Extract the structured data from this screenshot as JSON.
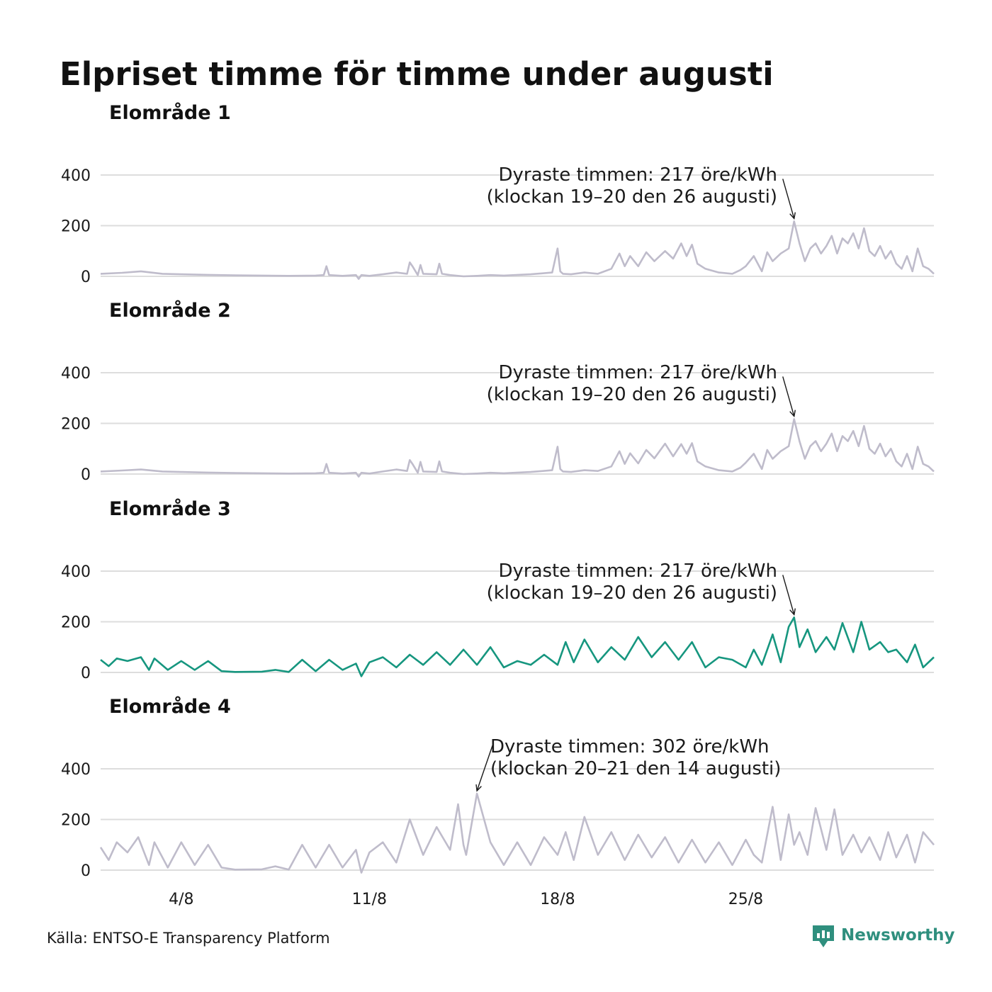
{
  "title": "Elpriset timme för timme under augusti",
  "source": "Källa: ENTSO-E Transparency Platform",
  "brand": {
    "name": "Newsworthy",
    "icon": "newsworthy-logo-icon",
    "color": "#2f8f7e"
  },
  "colors": {
    "highlight": "#16967f",
    "muted": "#bfbccb",
    "grid": "#dddddd"
  },
  "chart_data": [
    {
      "type": "line",
      "title": "Elområde 1",
      "highlight": false,
      "yticks": [
        0,
        200,
        400
      ],
      "ylim": [
        -30,
        430
      ],
      "xlim": [
        1,
        32
      ],
      "xticks": [
        {
          "value": 4,
          "label": "4/8"
        },
        {
          "value": 11,
          "label": "11/8"
        },
        {
          "value": 18,
          "label": "18/8"
        },
        {
          "value": 25,
          "label": "25/8"
        }
      ],
      "x": [
        1.0,
        1.8,
        2.5,
        3.3,
        4.0,
        5.0,
        6.0,
        7.0,
        8.0,
        9.0,
        9.3,
        9.4,
        9.5,
        10.0,
        10.5,
        10.6,
        10.7,
        11.0,
        11.5,
        12.0,
        12.4,
        12.5,
        12.6,
        12.8,
        12.9,
        13.0,
        13.5,
        13.6,
        13.7,
        14.0,
        14.5,
        15.0,
        15.5,
        16.0,
        17.0,
        17.8,
        18.0,
        18.1,
        18.2,
        18.5,
        19.0,
        19.5,
        20.0,
        20.3,
        20.5,
        20.7,
        21.0,
        21.3,
        21.6,
        22.0,
        22.3,
        22.6,
        22.8,
        23.0,
        23.2,
        23.5,
        24.0,
        24.5,
        24.8,
        25.0,
        25.3,
        25.6,
        25.8,
        26.0,
        26.3,
        26.6,
        26.8,
        27.0,
        27.2,
        27.4,
        27.6,
        27.8,
        28.0,
        28.2,
        28.4,
        28.6,
        28.8,
        29.0,
        29.2,
        29.4,
        29.6,
        29.8,
        30.0,
        30.2,
        30.4,
        30.6,
        30.8,
        31.0,
        31.2,
        31.4,
        31.6,
        31.8,
        32.0
      ],
      "y": [
        10,
        14,
        20,
        10,
        8,
        6,
        4,
        3,
        2,
        3,
        5,
        40,
        5,
        2,
        5,
        -10,
        5,
        2,
        8,
        15,
        10,
        55,
        40,
        5,
        45,
        10,
        8,
        50,
        10,
        5,
        0,
        2,
        5,
        3,
        8,
        15,
        110,
        20,
        10,
        8,
        15,
        10,
        30,
        90,
        40,
        80,
        40,
        95,
        60,
        100,
        70,
        130,
        80,
        125,
        50,
        30,
        15,
        10,
        25,
        40,
        80,
        20,
        95,
        60,
        90,
        110,
        217,
        130,
        60,
        110,
        130,
        90,
        120,
        160,
        90,
        150,
        130,
        170,
        110,
        190,
        100,
        80,
        120,
        70,
        100,
        50,
        30,
        80,
        20,
        110,
        40,
        30,
        10
      ],
      "annotation": {
        "text_line1": "Dyraste timmen: 217 öre/kWh",
        "text_line2": "(klockan 19–20 den 26 augusti)",
        "x": 26.8,
        "y": 217
      }
    },
    {
      "type": "line",
      "title": "Elområde 2",
      "highlight": false,
      "yticks": [
        0,
        200,
        400
      ],
      "ylim": [
        -30,
        430
      ],
      "xlim": [
        1,
        32
      ],
      "xticks": [
        {
          "value": 4,
          "label": "4/8"
        },
        {
          "value": 11,
          "label": "11/8"
        },
        {
          "value": 18,
          "label": "18/8"
        },
        {
          "value": 25,
          "label": "25/8"
        }
      ],
      "x": [
        1.0,
        1.8,
        2.5,
        3.3,
        4.0,
        5.0,
        6.0,
        7.0,
        8.0,
        9.0,
        9.3,
        9.4,
        9.5,
        10.0,
        10.5,
        10.6,
        10.7,
        11.0,
        11.5,
        12.0,
        12.4,
        12.5,
        12.6,
        12.8,
        12.9,
        13.0,
        13.5,
        13.6,
        13.7,
        14.0,
        14.5,
        15.0,
        15.5,
        16.0,
        17.0,
        17.8,
        18.0,
        18.1,
        18.2,
        18.5,
        19.0,
        19.5,
        20.0,
        20.3,
        20.5,
        20.7,
        21.0,
        21.3,
        21.6,
        22.0,
        22.3,
        22.6,
        22.8,
        23.0,
        23.2,
        23.5,
        24.0,
        24.5,
        24.8,
        25.0,
        25.3,
        25.6,
        25.8,
        26.0,
        26.3,
        26.6,
        26.8,
        27.0,
        27.2,
        27.4,
        27.6,
        27.8,
        28.0,
        28.2,
        28.4,
        28.6,
        28.8,
        29.0,
        29.2,
        29.4,
        29.6,
        29.8,
        30.0,
        30.2,
        30.4,
        30.6,
        30.8,
        31.0,
        31.2,
        31.4,
        31.6,
        31.8,
        32.0
      ],
      "y": [
        10,
        14,
        18,
        10,
        8,
        6,
        4,
        3,
        2,
        3,
        5,
        40,
        5,
        2,
        5,
        -10,
        5,
        2,
        10,
        18,
        12,
        55,
        40,
        5,
        48,
        10,
        8,
        50,
        10,
        5,
        0,
        2,
        5,
        3,
        8,
        15,
        108,
        20,
        10,
        8,
        15,
        12,
        30,
        90,
        40,
        82,
        42,
        95,
        62,
        120,
        70,
        118,
        80,
        122,
        50,
        30,
        15,
        10,
        25,
        45,
        80,
        20,
        95,
        60,
        90,
        110,
        217,
        130,
        60,
        110,
        130,
        90,
        120,
        160,
        90,
        150,
        130,
        170,
        110,
        190,
        100,
        80,
        120,
        70,
        100,
        50,
        30,
        80,
        20,
        108,
        40,
        30,
        10
      ],
      "annotation": {
        "text_line1": "Dyraste timmen: 217 öre/kWh",
        "text_line2": "(klockan 19–20 den 26 augusti)",
        "x": 26.8,
        "y": 217
      }
    },
    {
      "type": "line",
      "title": "Elområde 3",
      "highlight": true,
      "yticks": [
        0,
        200,
        400
      ],
      "ylim": [
        -30,
        430
      ],
      "xlim": [
        1,
        32
      ],
      "xticks": [
        {
          "value": 4,
          "label": "4/8"
        },
        {
          "value": 11,
          "label": "11/8"
        },
        {
          "value": 18,
          "label": "18/8"
        },
        {
          "value": 25,
          "label": "25/8"
        }
      ],
      "x": [
        1.0,
        1.3,
        1.6,
        2.0,
        2.5,
        2.8,
        3.0,
        3.5,
        4.0,
        4.5,
        5.0,
        5.5,
        6.0,
        7.0,
        7.5,
        8.0,
        8.5,
        9.0,
        9.5,
        10.0,
        10.5,
        10.7,
        11.0,
        11.5,
        12.0,
        12.5,
        13.0,
        13.5,
        14.0,
        14.5,
        15.0,
        15.5,
        16.0,
        16.5,
        17.0,
        17.5,
        18.0,
        18.3,
        18.6,
        19.0,
        19.5,
        20.0,
        20.5,
        21.0,
        21.5,
        22.0,
        22.5,
        23.0,
        23.5,
        24.0,
        24.5,
        25.0,
        25.3,
        25.6,
        26.0,
        26.3,
        26.6,
        26.8,
        27.0,
        27.3,
        27.6,
        28.0,
        28.3,
        28.6,
        29.0,
        29.3,
        29.6,
        30.0,
        30.3,
        30.6,
        31.0,
        31.3,
        31.6,
        32.0
      ],
      "y": [
        50,
        25,
        55,
        45,
        60,
        10,
        55,
        10,
        45,
        10,
        45,
        5,
        2,
        3,
        10,
        2,
        50,
        5,
        50,
        10,
        35,
        -15,
        40,
        60,
        20,
        70,
        30,
        80,
        30,
        90,
        30,
        100,
        20,
        45,
        30,
        70,
        30,
        120,
        40,
        130,
        40,
        100,
        50,
        140,
        60,
        120,
        50,
        120,
        20,
        60,
        50,
        20,
        90,
        30,
        150,
        40,
        180,
        217,
        100,
        170,
        80,
        140,
        90,
        195,
        80,
        200,
        90,
        120,
        80,
        90,
        40,
        110,
        20,
        60
      ],
      "annotation": {
        "text_line1": "Dyraste timmen: 217 öre/kWh",
        "text_line2": "(klockan 19–20 den 26 augusti)",
        "x": 26.8,
        "y": 217
      }
    },
    {
      "type": "line",
      "title": "Elområde 4",
      "highlight": false,
      "yticks": [
        0,
        200,
        400
      ],
      "ylim": [
        -30,
        430
      ],
      "xlim": [
        1,
        32
      ],
      "xticks": [
        {
          "value": 4,
          "label": "4/8"
        },
        {
          "value": 11,
          "label": "11/8"
        },
        {
          "value": 18,
          "label": "18/8"
        },
        {
          "value": 25,
          "label": "25/8"
        }
      ],
      "x": [
        1.0,
        1.3,
        1.6,
        2.0,
        2.4,
        2.8,
        3.0,
        3.5,
        4.0,
        4.5,
        5.0,
        5.5,
        6.0,
        7.0,
        7.5,
        8.0,
        8.5,
        9.0,
        9.5,
        10.0,
        10.5,
        10.7,
        11.0,
        11.5,
        12.0,
        12.5,
        13.0,
        13.5,
        14.0,
        14.3,
        14.5,
        14.6,
        15.0,
        15.5,
        16.0,
        16.5,
        17.0,
        17.5,
        18.0,
        18.3,
        18.6,
        19.0,
        19.5,
        20.0,
        20.5,
        21.0,
        21.5,
        22.0,
        22.5,
        23.0,
        23.5,
        24.0,
        24.5,
        25.0,
        25.3,
        25.6,
        26.0,
        26.3,
        26.6,
        26.8,
        27.0,
        27.3,
        27.6,
        28.0,
        28.3,
        28.6,
        29.0,
        29.3,
        29.6,
        30.0,
        30.3,
        30.6,
        31.0,
        31.3,
        31.6,
        32.0
      ],
      "y": [
        90,
        40,
        110,
        70,
        130,
        20,
        110,
        10,
        110,
        20,
        100,
        10,
        2,
        3,
        15,
        2,
        100,
        10,
        100,
        10,
        80,
        -10,
        70,
        110,
        30,
        200,
        60,
        170,
        80,
        260,
        100,
        60,
        302,
        110,
        20,
        110,
        20,
        130,
        60,
        150,
        40,
        210,
        60,
        150,
        40,
        140,
        50,
        130,
        30,
        120,
        30,
        110,
        20,
        120,
        60,
        30,
        250,
        40,
        220,
        100,
        150,
        60,
        245,
        80,
        240,
        60,
        140,
        70,
        130,
        40,
        150,
        50,
        140,
        30,
        150,
        100
      ],
      "annotation": {
        "text_line1": "Dyraste timmen: 302 öre/kWh",
        "text_line2": "(klockan 20–21 den 14 augusti)",
        "x": 15.0,
        "y": 302
      }
    }
  ]
}
